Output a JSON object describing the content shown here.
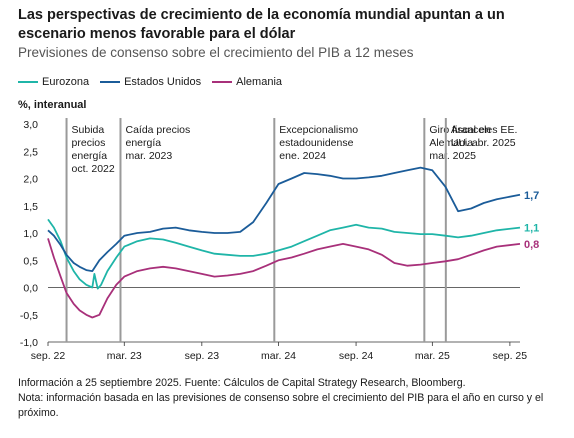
{
  "title": "Las perspectivas de crecimiento de la economía mundial apuntan a un escenario menos favorable para el dólar",
  "subtitle": "Previsiones de consenso sobre el crecimiento del PIB a 12 meses",
  "footnotes": {
    "source": "Información a 25 septiembre 2025. Fuente: Cálculos de Capital Strategy Research, Bloomberg.",
    "note": "Nota: información basada en las previsiones de consenso sobre el crecimiento del PIB para el año en curso y el próximo."
  },
  "colors": {
    "eurozona": "#1fb5a8",
    "estados_unidos": "#1b5c99",
    "alemania": "#a8307a",
    "event_line": "#9a9a9a",
    "axis": "#333333"
  },
  "chart_data": {
    "type": "line",
    "ylabel": "%, interanual",
    "ylim": [
      -1.0,
      3.0
    ],
    "yticks": [
      "3,0",
      "2,5",
      "2,0",
      "1,5",
      "1,0",
      "0,5",
      "0,0",
      "-0,5",
      "-1,0"
    ],
    "xlim": [
      "2022-09-01",
      "2025-09-25"
    ],
    "xticks": [
      {
        "date": "2022-09-01",
        "label": "sep. 22"
      },
      {
        "date": "2023-03-01",
        "label": "mar. 23"
      },
      {
        "date": "2023-09-01",
        "label": "sep. 23"
      },
      {
        "date": "2024-03-01",
        "label": "mar. 24"
      },
      {
        "date": "2024-09-01",
        "label": "sep. 24"
      },
      {
        "date": "2025-03-01",
        "label": "mar. 25"
      },
      {
        "date": "2025-09-01",
        "label": "sep. 25"
      }
    ],
    "events": [
      {
        "date": "2022-10-15",
        "label": [
          "Subida",
          "precios",
          "energía",
          "oct. 2022"
        ]
      },
      {
        "date": "2023-02-20",
        "label": [
          "Caída precios",
          "energía",
          "mar. 2023"
        ]
      },
      {
        "date": "2024-02-20",
        "label": [
          "Excepcionalismo",
          "estadounidense",
          "ene. 2024"
        ]
      },
      {
        "date": "2025-02-10",
        "label": [
          "Giro fiscal en",
          "Alemania",
          "mar. 2025"
        ]
      },
      {
        "date": "2025-04-02",
        "label": [
          "Aranceles EE.",
          "UU. abr. 2025"
        ]
      }
    ],
    "series": [
      {
        "name": "Eurozona",
        "color": "#1fb5a8",
        "end_label": "1,1",
        "points": [
          [
            "2022-09-01",
            1.25
          ],
          [
            "2022-09-15",
            1.1
          ],
          [
            "2022-10-01",
            0.85
          ],
          [
            "2022-10-15",
            0.55
          ],
          [
            "2022-11-01",
            0.3
          ],
          [
            "2022-11-15",
            0.15
          ],
          [
            "2022-12-01",
            0.05
          ],
          [
            "2022-12-15",
            0.0
          ],
          [
            "2022-12-20",
            0.25
          ],
          [
            "2022-12-28",
            -0.02
          ],
          [
            "2023-01-05",
            0.05
          ],
          [
            "2023-01-20",
            0.3
          ],
          [
            "2023-02-10",
            0.55
          ],
          [
            "2023-03-01",
            0.75
          ],
          [
            "2023-04-01",
            0.85
          ],
          [
            "2023-05-01",
            0.9
          ],
          [
            "2023-06-01",
            0.88
          ],
          [
            "2023-07-01",
            0.82
          ],
          [
            "2023-08-01",
            0.75
          ],
          [
            "2023-09-01",
            0.68
          ],
          [
            "2023-10-01",
            0.62
          ],
          [
            "2023-11-01",
            0.6
          ],
          [
            "2023-12-01",
            0.58
          ],
          [
            "2024-01-01",
            0.58
          ],
          [
            "2024-02-01",
            0.62
          ],
          [
            "2024-03-01",
            0.68
          ],
          [
            "2024-04-01",
            0.75
          ],
          [
            "2024-05-01",
            0.85
          ],
          [
            "2024-06-01",
            0.95
          ],
          [
            "2024-07-01",
            1.05
          ],
          [
            "2024-08-01",
            1.1
          ],
          [
            "2024-09-01",
            1.15
          ],
          [
            "2024-10-01",
            1.1
          ],
          [
            "2024-11-01",
            1.08
          ],
          [
            "2024-12-01",
            1.02
          ],
          [
            "2025-01-01",
            1.0
          ],
          [
            "2025-02-01",
            0.98
          ],
          [
            "2025-03-01",
            0.98
          ],
          [
            "2025-04-01",
            0.95
          ],
          [
            "2025-05-01",
            0.92
          ],
          [
            "2025-06-01",
            0.95
          ],
          [
            "2025-07-01",
            1.0
          ],
          [
            "2025-08-01",
            1.05
          ],
          [
            "2025-09-25",
            1.1
          ]
        ]
      },
      {
        "name": "Estados Unidos",
        "color": "#1b5c99",
        "end_label": "1,7",
        "points": [
          [
            "2022-09-01",
            1.05
          ],
          [
            "2022-09-15",
            0.95
          ],
          [
            "2022-10-01",
            0.78
          ],
          [
            "2022-10-15",
            0.6
          ],
          [
            "2022-11-01",
            0.45
          ],
          [
            "2022-11-15",
            0.38
          ],
          [
            "2022-12-01",
            0.32
          ],
          [
            "2022-12-15",
            0.3
          ],
          [
            "2023-01-01",
            0.5
          ],
          [
            "2023-01-20",
            0.65
          ],
          [
            "2023-02-10",
            0.8
          ],
          [
            "2023-03-01",
            0.95
          ],
          [
            "2023-04-01",
            1.0
          ],
          [
            "2023-05-01",
            1.02
          ],
          [
            "2023-06-01",
            1.08
          ],
          [
            "2023-07-01",
            1.1
          ],
          [
            "2023-08-01",
            1.05
          ],
          [
            "2023-09-01",
            1.02
          ],
          [
            "2023-10-01",
            1.0
          ],
          [
            "2023-11-01",
            1.0
          ],
          [
            "2023-12-01",
            1.02
          ],
          [
            "2024-01-01",
            1.2
          ],
          [
            "2024-02-01",
            1.55
          ],
          [
            "2024-03-01",
            1.9
          ],
          [
            "2024-04-01",
            2.0
          ],
          [
            "2024-05-01",
            2.1
          ],
          [
            "2024-06-01",
            2.08
          ],
          [
            "2024-07-01",
            2.05
          ],
          [
            "2024-08-01",
            2.0
          ],
          [
            "2024-09-01",
            2.0
          ],
          [
            "2024-10-01",
            2.02
          ],
          [
            "2024-11-01",
            2.05
          ],
          [
            "2024-12-01",
            2.1
          ],
          [
            "2025-01-01",
            2.15
          ],
          [
            "2025-02-01",
            2.2
          ],
          [
            "2025-03-01",
            2.15
          ],
          [
            "2025-04-01",
            1.85
          ],
          [
            "2025-05-01",
            1.4
          ],
          [
            "2025-06-01",
            1.45
          ],
          [
            "2025-07-01",
            1.55
          ],
          [
            "2025-08-01",
            1.62
          ],
          [
            "2025-09-25",
            1.7
          ]
        ]
      },
      {
        "name": "Alemania",
        "color": "#a8307a",
        "end_label": "0,8",
        "points": [
          [
            "2022-09-01",
            0.9
          ],
          [
            "2022-09-15",
            0.55
          ],
          [
            "2022-10-01",
            0.2
          ],
          [
            "2022-10-15",
            -0.1
          ],
          [
            "2022-11-01",
            -0.3
          ],
          [
            "2022-11-15",
            -0.42
          ],
          [
            "2022-12-01",
            -0.5
          ],
          [
            "2022-12-15",
            -0.55
          ],
          [
            "2023-01-01",
            -0.5
          ],
          [
            "2023-01-20",
            -0.2
          ],
          [
            "2023-02-10",
            0.05
          ],
          [
            "2023-03-01",
            0.2
          ],
          [
            "2023-04-01",
            0.3
          ],
          [
            "2023-05-01",
            0.35
          ],
          [
            "2023-06-01",
            0.38
          ],
          [
            "2023-07-01",
            0.35
          ],
          [
            "2023-08-01",
            0.3
          ],
          [
            "2023-09-01",
            0.25
          ],
          [
            "2023-10-01",
            0.2
          ],
          [
            "2023-11-01",
            0.22
          ],
          [
            "2023-12-01",
            0.25
          ],
          [
            "2024-01-01",
            0.3
          ],
          [
            "2024-02-01",
            0.4
          ],
          [
            "2024-03-01",
            0.5
          ],
          [
            "2024-04-01",
            0.55
          ],
          [
            "2024-05-01",
            0.62
          ],
          [
            "2024-06-01",
            0.7
          ],
          [
            "2024-07-01",
            0.75
          ],
          [
            "2024-08-01",
            0.8
          ],
          [
            "2024-09-01",
            0.75
          ],
          [
            "2024-10-01",
            0.7
          ],
          [
            "2024-11-01",
            0.6
          ],
          [
            "2024-12-01",
            0.45
          ],
          [
            "2025-01-01",
            0.4
          ],
          [
            "2025-02-01",
            0.42
          ],
          [
            "2025-03-01",
            0.45
          ],
          [
            "2025-04-01",
            0.48
          ],
          [
            "2025-05-01",
            0.52
          ],
          [
            "2025-06-01",
            0.6
          ],
          [
            "2025-07-01",
            0.68
          ],
          [
            "2025-08-01",
            0.75
          ],
          [
            "2025-09-25",
            0.8
          ]
        ]
      }
    ]
  }
}
